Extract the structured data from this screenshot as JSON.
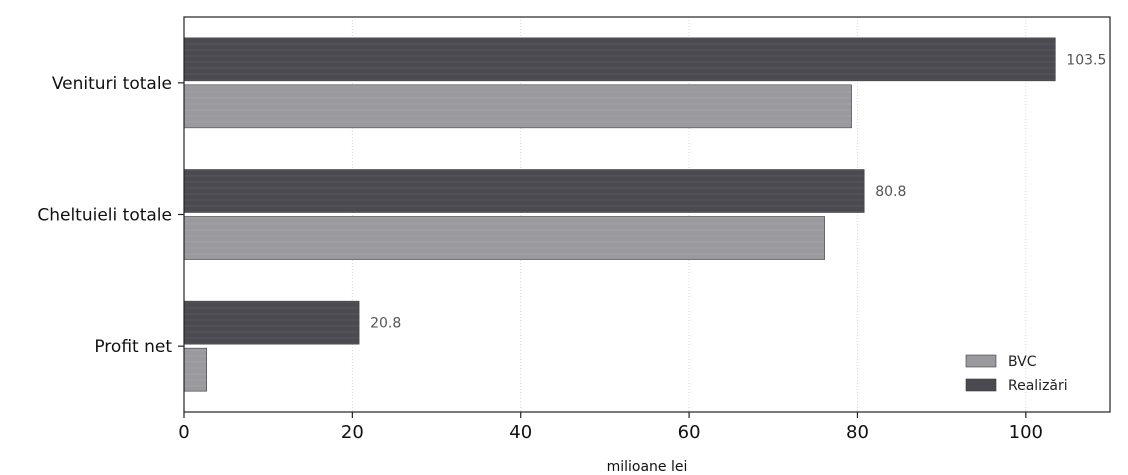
{
  "chart_data": {
    "type": "bar",
    "orientation": "horizontal",
    "title": "",
    "categories": [
      "Venituri totale",
      "Cheltuieli totale",
      "Profit net"
    ],
    "series": [
      {
        "name": "Realizări",
        "values": [
          103.5,
          80.8,
          20.8
        ],
        "color": "#4a4a50",
        "data_labels": [
          "103.5",
          "80.8",
          "20.8"
        ]
      },
      {
        "name": "BVC",
        "values": [
          79.3,
          76.1,
          2.7
        ],
        "color": "#9a9a9e",
        "data_labels": [
          "",
          "",
          ""
        ]
      }
    ],
    "xlabel": "milioane lei",
    "ylabel": "",
    "xlim": [
      0,
      110
    ],
    "xticks": [
      0,
      20,
      40,
      60,
      80,
      100
    ],
    "xtick_labels": [
      "0",
      "20",
      "40",
      "60",
      "80",
      "100"
    ],
    "grid": "vertical",
    "legend": {
      "position": "bottom-right",
      "entries": [
        {
          "name": "BVC",
          "color": "#9a9a9e"
        },
        {
          "name": "Realizări",
          "color": "#4a4a50"
        }
      ]
    }
  }
}
